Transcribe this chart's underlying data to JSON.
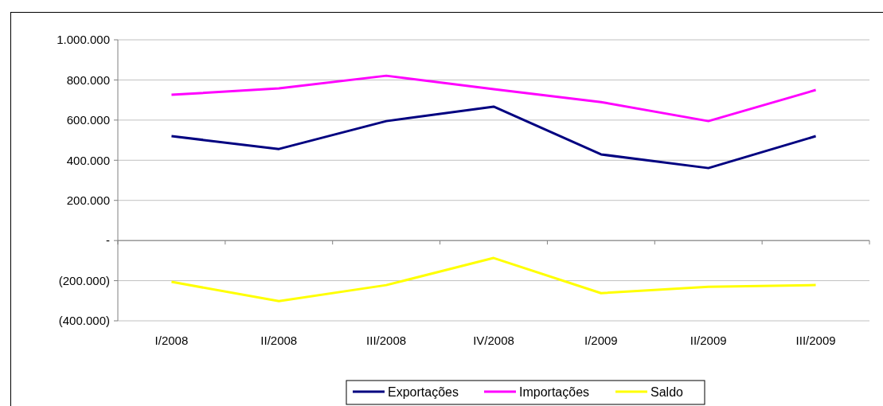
{
  "chart_data": {
    "type": "line",
    "categories": [
      "I/2008",
      "II/2008",
      "III/2008",
      "IV/2008",
      "I/2009",
      "II/2009",
      "III/2009"
    ],
    "series": [
      {
        "name": "Exportações",
        "color": "#000080",
        "values": [
          520000,
          456000,
          595000,
          667000,
          429000,
          361000,
          520000
        ]
      },
      {
        "name": "Importações",
        "color": "#ff00ff",
        "values": [
          726000,
          758000,
          821000,
          754000,
          690000,
          595000,
          750000
        ]
      },
      {
        "name": "Saldo",
        "color": "#ffff00",
        "values": [
          -206000,
          -302000,
          -222000,
          -87000,
          -262000,
          -230000,
          -222000
        ]
      }
    ],
    "ylim": [
      -400000,
      1000000
    ],
    "yticks": [
      {
        "value": -400000,
        "label": "(400.000)"
      },
      {
        "value": -200000,
        "label": "(200.000)"
      },
      {
        "value": 0,
        "label": "-"
      },
      {
        "value": 200000,
        "label": "200.000"
      },
      {
        "value": 400000,
        "label": "400.000"
      },
      {
        "value": 600000,
        "label": "600.000"
      },
      {
        "value": 800000,
        "label": "800.000"
      },
      {
        "value": 1000000,
        "label": "1.000.000"
      }
    ],
    "grid": "y",
    "legend": "bottom",
    "marker": "none",
    "line_style": "solid"
  }
}
